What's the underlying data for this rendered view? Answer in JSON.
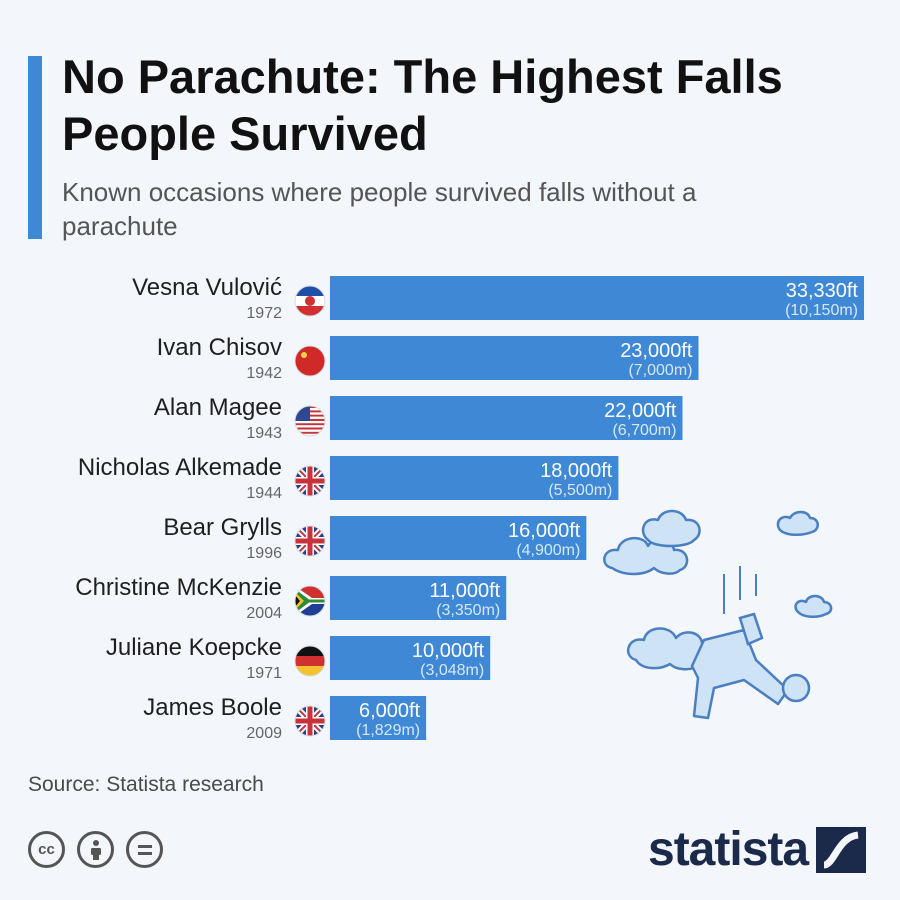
{
  "header": {
    "title": "No Parachute: The Highest Falls People Survived",
    "subtitle": "Known occasions where people survived falls without a parachute"
  },
  "footer": {
    "source": "Source: Statista research",
    "brand": "statista",
    "license_icons": [
      "cc-icon",
      "attribution-icon",
      "no-derivatives-icon"
    ]
  },
  "colors": {
    "accent": "#3e88d6",
    "bar": "#3e88d6",
    "value_text": "#ffffff",
    "sub_value_text": "#d6e8fa",
    "illustration": "#4a7fc1",
    "illustration_fill": "#cfe3f7"
  },
  "chart_data": {
    "type": "bar",
    "orientation": "horizontal",
    "unit": "ft",
    "categories": [
      "Vesna Vulović",
      "Ivan Chisov",
      "Alan Magee",
      "Nicholas Alkemade",
      "Bear Grylls",
      "Christine McKenzie",
      "Juliane Koepcke",
      "James Boole"
    ],
    "years": [
      "1972",
      "1942",
      "1943",
      "1944",
      "1996",
      "2004",
      "1971",
      "2009"
    ],
    "flags": [
      "yugoslavia",
      "soviet-union",
      "usa",
      "uk",
      "uk",
      "south-africa",
      "germany",
      "uk"
    ],
    "values": [
      33330,
      23000,
      22000,
      18000,
      16000,
      11000,
      10000,
      6000
    ],
    "value_labels": [
      "33,330ft",
      "23,000ft",
      "22,000ft",
      "18,000ft",
      "16,000ft",
      "11,000ft",
      "10,000ft",
      "6,000ft"
    ],
    "secondary_labels": [
      "(10,150m)",
      "(7,000m)",
      "(6,700m)",
      "(5,500m)",
      "(4,900m)",
      "(3,350m)",
      "(3,048m)",
      "(1,829m)"
    ],
    "xlim": [
      0,
      33330
    ],
    "grid": false,
    "legend": "none"
  }
}
